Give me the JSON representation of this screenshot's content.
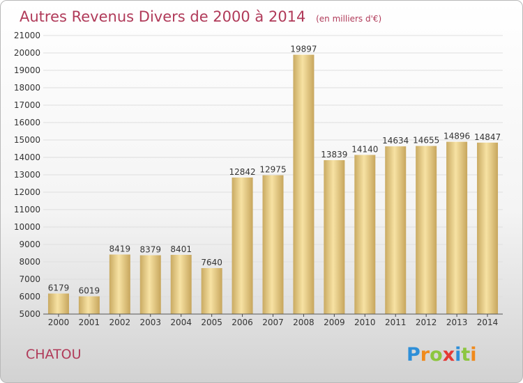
{
  "chart_data": {
    "type": "bar",
    "title": "Autres Revenus Divers de 2000 à 2014",
    "subtitle": "(en milliers d'€)",
    "categories": [
      "2000",
      "2001",
      "2002",
      "2003",
      "2004",
      "2005",
      "2006",
      "2007",
      "2008",
      "2009",
      "2010",
      "2011",
      "2012",
      "2013",
      "2014"
    ],
    "values": [
      6179,
      6019,
      8419,
      8379,
      8401,
      7640,
      12842,
      12975,
      19897,
      13839,
      14140,
      14634,
      14655,
      14896,
      14847
    ],
    "ylim": [
      5000,
      21000
    ],
    "ytick_step": 1000,
    "grid": true,
    "xlabel": "",
    "ylabel": "",
    "bar_color_light": "#f6e0a0",
    "bar_color_dark": "#c8a860"
  },
  "footer": {
    "city": "CHATOU",
    "logo": "Proxiti"
  }
}
